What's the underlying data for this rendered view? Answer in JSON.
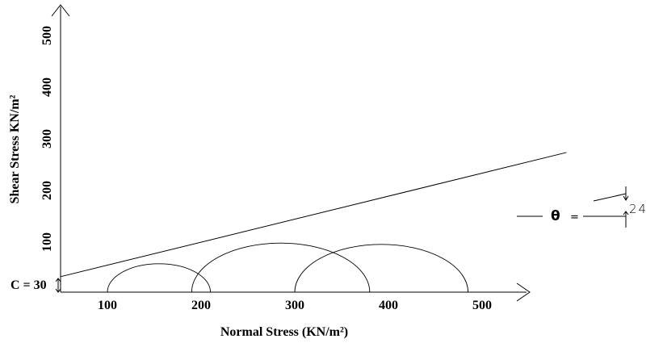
{
  "chart_data": {
    "type": "scatter",
    "subtype": "mohr-circles",
    "xlabel": "Normal Stress (KN/m²)",
    "ylabel": "Shear Stress KN/m²",
    "x_ticks": [
      100,
      200,
      300,
      400,
      500
    ],
    "y_ticks": [
      100,
      200,
      300,
      400,
      500
    ],
    "xlim": [
      50,
      550
    ],
    "ylim": [
      0,
      560
    ],
    "circles": [
      {
        "sigma3": 100,
        "sigma1": 210
      },
      {
        "sigma3": 190,
        "sigma1": 380
      },
      {
        "sigma3": 300,
        "sigma1": 485
      }
    ],
    "envelope": {
      "cohesion": 30,
      "phi_deg": 24
    },
    "annotations": {
      "cohesion_label": "C = 30",
      "theta_symbol": "θ",
      "theta_eq": "=",
      "angle_value": "24"
    }
  }
}
